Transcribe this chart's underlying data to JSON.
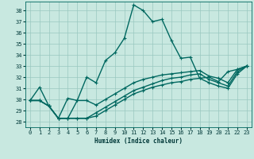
{
  "xlabel": "Humidex (Indice chaleur)",
  "ylabel": "",
  "xlim": [
    -0.5,
    23.5
  ],
  "ylim": [
    27.5,
    38.8
  ],
  "yticks": [
    28,
    29,
    30,
    31,
    32,
    33,
    34,
    35,
    36,
    37,
    38
  ],
  "xticks": [
    0,
    1,
    2,
    3,
    4,
    5,
    6,
    7,
    8,
    9,
    10,
    11,
    12,
    13,
    14,
    15,
    16,
    17,
    18,
    19,
    20,
    21,
    22,
    23
  ],
  "background_color": "#c8e8e0",
  "grid_color": "#9ac8c0",
  "line_color": "#006860",
  "lines": [
    {
      "x": [
        0,
        1,
        2,
        3,
        4,
        5,
        6,
        7,
        8,
        9,
        10,
        11,
        12,
        13,
        14,
        15,
        16,
        17,
        18,
        19,
        20,
        21,
        22,
        23
      ],
      "y": [
        29.9,
        31.1,
        29.4,
        28.3,
        30.1,
        29.9,
        32.0,
        31.5,
        33.5,
        34.2,
        35.5,
        38.5,
        38.0,
        37.0,
        37.2,
        35.3,
        33.7,
        33.8,
        31.9,
        32.0,
        31.6,
        32.5,
        32.7,
        33.0
      ]
    },
    {
      "x": [
        0,
        1,
        2,
        3,
        4,
        5,
        6,
        7,
        8,
        9,
        10,
        11,
        12,
        13,
        14,
        15,
        16,
        17,
        18,
        19,
        20,
        21,
        22,
        23
      ],
      "y": [
        29.9,
        29.9,
        29.4,
        28.3,
        28.3,
        29.9,
        29.9,
        29.5,
        30.0,
        30.5,
        31.0,
        31.5,
        31.8,
        32.0,
        32.2,
        32.3,
        32.4,
        32.5,
        32.6,
        32.1,
        31.9,
        31.5,
        32.7,
        33.0
      ]
    },
    {
      "x": [
        0,
        1,
        2,
        3,
        4,
        5,
        6,
        7,
        8,
        9,
        10,
        11,
        12,
        13,
        14,
        15,
        16,
        17,
        18,
        19,
        20,
        21,
        22,
        23
      ],
      "y": [
        29.9,
        29.9,
        29.4,
        28.3,
        28.3,
        28.3,
        28.3,
        28.8,
        29.3,
        29.8,
        30.3,
        30.8,
        31.1,
        31.4,
        31.7,
        31.9,
        32.0,
        32.2,
        32.3,
        31.8,
        31.5,
        31.2,
        32.5,
        33.0
      ]
    },
    {
      "x": [
        0,
        1,
        2,
        3,
        4,
        5,
        6,
        7,
        8,
        9,
        10,
        11,
        12,
        13,
        14,
        15,
        16,
        17,
        18,
        19,
        20,
        21,
        22,
        23
      ],
      "y": [
        29.9,
        29.9,
        29.4,
        28.3,
        28.3,
        28.3,
        28.3,
        28.5,
        29.0,
        29.5,
        30.0,
        30.5,
        30.8,
        31.1,
        31.3,
        31.5,
        31.6,
        31.8,
        31.9,
        31.5,
        31.2,
        31.0,
        32.3,
        33.0
      ]
    }
  ]
}
